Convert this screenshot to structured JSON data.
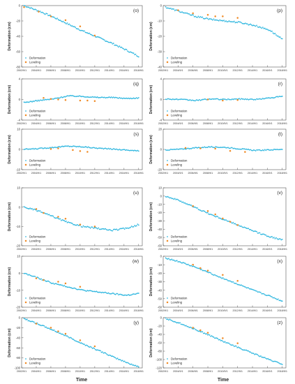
{
  "figure": {
    "xlabel": "Time",
    "ylabel": "Deformation (cm)",
    "x_ticks": [
      "2002/9/1",
      "2004/9/1",
      "2006/9/1",
      "2008/9/1",
      "2010/9/1",
      "2012/9/1",
      "2014/9/1",
      "2016/9/1",
      "2018/9/1"
    ],
    "x_range": [
      "2002-09-01",
      "2019-03-01"
    ],
    "legend_labels": [
      "Deformation",
      "Leveling"
    ],
    "colors": {
      "deformation": "#33b8e0",
      "leveling": "#f08a24",
      "axis": "#555555"
    }
  },
  "chart_data": [
    {
      "type": "scatter",
      "panel_label": "(o)",
      "ylim": [
        -80,
        0
      ],
      "yticks": [
        0,
        -20,
        -40,
        -60,
        -80
      ],
      "legend_position": "bottom-left",
      "deformation": [
        [
          "2003-01-01",
          0
        ],
        [
          "2005-01-01",
          -7
        ],
        [
          "2007-01-01",
          -15
        ],
        [
          "2009-01-01",
          -24
        ],
        [
          "2011-01-01",
          -33
        ],
        [
          "2013-01-01",
          -41
        ],
        [
          "2015-01-01",
          -49
        ],
        [
          "2017-01-01",
          -58
        ],
        [
          "2018-09-01",
          -66
        ]
      ],
      "leveling": [
        [
          "2003-01-01",
          -2
        ],
        [
          "2005-01-01",
          -8
        ],
        [
          "2006-09-01",
          -14
        ],
        [
          "2008-09-01",
          -19
        ],
        [
          "2010-09-01",
          -27
        ],
        [
          "2012-09-01",
          -39
        ]
      ]
    },
    {
      "type": "scatter",
      "panel_label": "(p)",
      "ylim": [
        -40,
        0
      ],
      "yticks": [
        0,
        -10,
        -20,
        -30,
        -40
      ],
      "legend_position": "bottom-left",
      "deformation": [
        [
          "2003-01-01",
          -1
        ],
        [
          "2005-01-01",
          -4
        ],
        [
          "2007-01-01",
          -7
        ],
        [
          "2009-01-01",
          -9
        ],
        [
          "2011-01-01",
          -10
        ],
        [
          "2013-01-01",
          -11
        ],
        [
          "2015-01-01",
          -13
        ],
        [
          "2017-01-01",
          -16
        ],
        [
          "2018-09-01",
          -22
        ]
      ],
      "leveling": [
        [
          "2004-09-01",
          -3
        ],
        [
          "2006-09-01",
          -5
        ],
        [
          "2008-09-01",
          -6
        ],
        [
          "2009-09-01",
          -7
        ],
        [
          "2010-09-01",
          -7
        ],
        [
          "2012-09-01",
          -8
        ]
      ]
    },
    {
      "type": "scatter",
      "panel_label": "(q)",
      "ylim": [
        -4,
        4
      ],
      "yticks": [
        4,
        0,
        -4
      ],
      "legend_position": "bottom-left",
      "deformation": [
        [
          "2003-01-01",
          -0.6
        ],
        [
          "2005-01-01",
          -0.2
        ],
        [
          "2007-01-01",
          0.1
        ],
        [
          "2009-01-01",
          0.7
        ],
        [
          "2011-01-01",
          0.6
        ],
        [
          "2013-01-01",
          0.4
        ],
        [
          "2015-01-01",
          0.4
        ],
        [
          "2017-01-01",
          0.2
        ],
        [
          "2018-09-01",
          0.3
        ]
      ],
      "leveling": [
        [
          "2005-09-01",
          0.3
        ],
        [
          "2006-09-01",
          0.1
        ],
        [
          "2007-09-01",
          0.0
        ],
        [
          "2008-09-01",
          -0.1
        ],
        [
          "2010-09-01",
          -0.2
        ],
        [
          "2011-09-01",
          -0.2
        ],
        [
          "2012-09-01",
          -0.3
        ]
      ]
    },
    {
      "type": "scatter",
      "panel_label": "(r)",
      "ylim": [
        -4,
        4
      ],
      "yticks": [
        4,
        0,
        -4
      ],
      "legend_position": "bottom-left",
      "deformation": [
        [
          "2003-01-01",
          0.1
        ],
        [
          "2005-01-01",
          0.0
        ],
        [
          "2007-01-01",
          -0.2
        ],
        [
          "2009-01-01",
          0.1
        ],
        [
          "2011-01-01",
          0.0
        ],
        [
          "2013-01-01",
          0.1
        ],
        [
          "2015-01-01",
          0.0
        ],
        [
          "2017-01-01",
          0.3
        ],
        [
          "2018-09-01",
          0.6
        ]
      ],
      "leveling": [
        [
          "2008-09-01",
          0.0
        ],
        [
          "2010-09-01",
          -0.2
        ],
        [
          "2012-09-01",
          -0.1
        ]
      ]
    },
    {
      "type": "scatter",
      "panel_label": "(s)",
      "ylim": [
        -10,
        10
      ],
      "yticks": [
        10,
        0,
        -10
      ],
      "legend_position": "bottom-left",
      "deformation": [
        [
          "2003-01-01",
          0.0
        ],
        [
          "2005-01-01",
          0.4
        ],
        [
          "2007-01-01",
          1.0
        ],
        [
          "2009-01-01",
          1.6
        ],
        [
          "2011-01-01",
          1.3
        ],
        [
          "2013-01-01",
          0.6
        ],
        [
          "2015-01-01",
          0.2
        ],
        [
          "2017-01-01",
          -0.3
        ],
        [
          "2018-09-01",
          -0.8
        ]
      ],
      "leveling": [
        [
          "2006-09-01",
          0.2
        ],
        [
          "2007-09-01",
          0.5
        ],
        [
          "2009-09-01",
          -0.3
        ],
        [
          "2010-09-01",
          -0.8
        ],
        [
          "2011-09-01",
          -1.2
        ]
      ]
    },
    {
      "type": "scatter",
      "panel_label": "(t)",
      "ylim": [
        -20,
        20
      ],
      "yticks": [
        20,
        0,
        -20
      ],
      "legend_position": "bottom-left",
      "deformation": [
        [
          "2003-01-01",
          -0.5
        ],
        [
          "2005-01-01",
          0.2
        ],
        [
          "2007-01-01",
          1.5
        ],
        [
          "2009-01-01",
          2.5
        ],
        [
          "2011-01-01",
          2.0
        ],
        [
          "2013-01-01",
          0.5
        ],
        [
          "2015-01-01",
          -1.0
        ],
        [
          "2017-01-01",
          -0.5
        ],
        [
          "2018-09-01",
          0.2
        ]
      ],
      "leveling": [
        [
          "2005-09-01",
          1.5
        ],
        [
          "2007-09-01",
          1.0
        ],
        [
          "2009-09-01",
          0.8
        ],
        [
          "2011-09-01",
          -1.5
        ],
        [
          "2013-09-01",
          -2.5
        ]
      ]
    },
    {
      "type": "scatter",
      "panel_label": "(u)",
      "ylim": [
        -20,
        10
      ],
      "yticks": [
        10,
        0,
        -10,
        -20
      ],
      "legend_position": "bottom-left",
      "deformation": [
        [
          "2003-01-01",
          0
        ],
        [
          "2005-01-01",
          -2
        ],
        [
          "2007-01-01",
          -5
        ],
        [
          "2009-01-01",
          -8
        ],
        [
          "2011-01-01",
          -10
        ],
        [
          "2013-01-01",
          -11
        ],
        [
          "2015-01-01",
          -12
        ],
        [
          "2017-01-01",
          -11
        ],
        [
          "2018-09-01",
          -9
        ]
      ],
      "leveling": [
        [
          "2004-09-01",
          -1
        ],
        [
          "2005-09-01",
          -3
        ],
        [
          "2007-09-01",
          -5
        ],
        [
          "2008-09-01",
          -6
        ],
        [
          "2010-09-01",
          -9
        ],
        [
          "2012-09-01",
          -10
        ]
      ]
    },
    {
      "type": "scatter",
      "panel_label": "(v)",
      "ylim": [
        -60,
        10
      ],
      "yticks": [
        10,
        0,
        -10,
        -20,
        -30,
        -40,
        -50,
        -60
      ],
      "legend_position": "bottom-left",
      "deformation": [
        [
          "2003-01-01",
          0
        ],
        [
          "2005-01-01",
          -6
        ],
        [
          "2007-01-01",
          -14
        ],
        [
          "2009-01-01",
          -22
        ],
        [
          "2011-01-01",
          -29
        ],
        [
          "2013-01-01",
          -36
        ],
        [
          "2015-01-01",
          -43
        ],
        [
          "2017-01-01",
          -49
        ],
        [
          "2018-09-01",
          -53
        ]
      ],
      "leveling": [
        [
          "2006-09-01",
          -12
        ],
        [
          "2008-09-01",
          -18
        ],
        [
          "2009-09-01",
          -22
        ],
        [
          "2010-09-01",
          -27
        ],
        [
          "2011-09-01",
          -31
        ],
        [
          "2012-09-01",
          -35
        ]
      ]
    },
    {
      "type": "scatter",
      "panel_label": "(w)",
      "ylim": [
        -20,
        10
      ],
      "yticks": [
        10,
        0,
        -10,
        -20
      ],
      "legend_position": "bottom-left",
      "deformation": [
        [
          "2003-01-01",
          0
        ],
        [
          "2005-01-01",
          -3
        ],
        [
          "2007-01-01",
          -6
        ],
        [
          "2009-01-01",
          -8
        ],
        [
          "2011-01-01",
          -10
        ],
        [
          "2013-01-01",
          -11
        ],
        [
          "2015-01-01",
          -12
        ],
        [
          "2017-01-01",
          -13
        ],
        [
          "2018-09-01",
          -12
        ]
      ],
      "leveling": [
        [
          "2004-09-01",
          -3
        ],
        [
          "2005-09-01",
          -4
        ],
        [
          "2007-09-01",
          -5
        ],
        [
          "2008-09-01",
          -6
        ],
        [
          "2010-09-01",
          -8
        ]
      ]
    },
    {
      "type": "scatter",
      "panel_label": "(x)",
      "ylim": [
        -60,
        0
      ],
      "yticks": [
        0,
        -10,
        -20,
        -30,
        -40,
        -50,
        -60
      ],
      "legend_position": "bottom-left",
      "deformation": [
        [
          "2003-01-01",
          -2
        ],
        [
          "2005-01-01",
          -7
        ],
        [
          "2007-01-01",
          -13
        ],
        [
          "2009-01-01",
          -20
        ],
        [
          "2011-01-01",
          -27
        ],
        [
          "2013-01-01",
          -34
        ],
        [
          "2015-01-01",
          -41
        ],
        [
          "2017-01-01",
          -47
        ],
        [
          "2018-09-01",
          -53
        ]
      ],
      "leveling": [
        [
          "2006-09-01",
          -10
        ],
        [
          "2007-09-01",
          -14
        ],
        [
          "2008-09-01",
          -17
        ],
        [
          "2010-09-01",
          -22
        ],
        [
          "2012-09-01",
          -29
        ]
      ]
    },
    {
      "type": "scatter",
      "panel_label": "(y)",
      "ylim": [
        -100,
        0
      ],
      "yticks": [
        0,
        -20,
        -40,
        -60,
        -80,
        -100
      ],
      "legend_position": "bottom-left",
      "deformation": [
        [
          "2003-01-01",
          -2
        ],
        [
          "2005-01-01",
          -13
        ],
        [
          "2007-01-01",
          -25
        ],
        [
          "2009-01-01",
          -38
        ],
        [
          "2011-01-01",
          -52
        ],
        [
          "2013-01-01",
          -64
        ],
        [
          "2015-01-01",
          -77
        ],
        [
          "2017-01-01",
          -89
        ],
        [
          "2018-09-01",
          -98
        ]
      ],
      "leveling": [
        [
          "2004-09-01",
          -12
        ],
        [
          "2006-09-01",
          -20
        ],
        [
          "2007-09-01",
          -27
        ],
        [
          "2008-09-01",
          -32
        ],
        [
          "2010-09-01",
          -45
        ],
        [
          "2012-09-01",
          -57
        ]
      ]
    },
    {
      "type": "scatter",
      "panel_label": "(z)",
      "ylim": [
        -120,
        0
      ],
      "yticks": [
        0,
        -20,
        -40,
        -60,
        -80,
        -100,
        -120
      ],
      "legend_position": "bottom-left",
      "deformation": [
        [
          "2003-01-01",
          -2
        ],
        [
          "2005-01-01",
          -14
        ],
        [
          "2007-01-01",
          -28
        ],
        [
          "2009-01-01",
          -43
        ],
        [
          "2011-01-01",
          -59
        ],
        [
          "2013-01-01",
          -73
        ],
        [
          "2015-01-01",
          -87
        ],
        [
          "2017-01-01",
          -101
        ],
        [
          "2018-09-01",
          -111
        ]
      ],
      "leveling": [
        [
          "2006-09-01",
          -24
        ],
        [
          "2007-09-01",
          -30
        ],
        [
          "2008-09-01",
          -36
        ],
        [
          "2010-09-01",
          -49
        ],
        [
          "2012-09-01",
          -61
        ]
      ]
    }
  ]
}
